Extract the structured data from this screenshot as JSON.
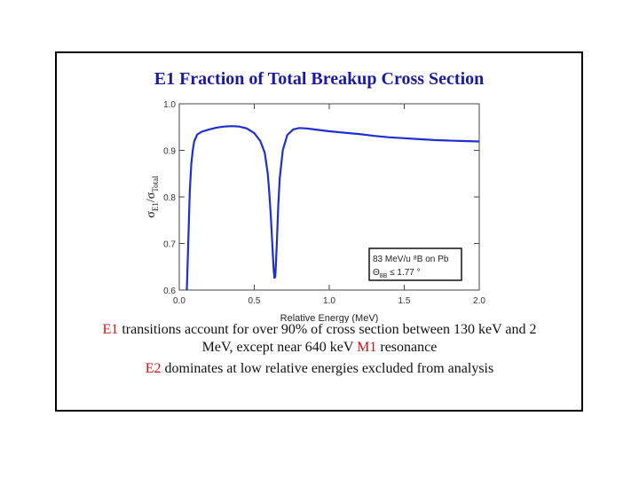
{
  "slide": {
    "title": "E1 Fraction of Total Breakup Cross Section",
    "caption_1": {
      "part1_red": "E1",
      "part2": " transitions account for over 90% of cross section between 130 keV and 2 MeV, except near 640 keV ",
      "part3_red": "M1",
      "part4": " resonance"
    },
    "caption_2": {
      "part1_red": "E2",
      "part2": " dominates at low relative energies excluded from analysis"
    },
    "colors": {
      "title": "#1a1aa0",
      "curve": "#1f2fcf",
      "highlight": "#cc1111"
    }
  },
  "chart_data": {
    "type": "line",
    "title": "E1 Fraction of Total Breakup Cross Section",
    "xlabel": "Relative Energy (MeV)",
    "ylabel_main": "σ",
    "ylabel_sub1": "E1",
    "ylabel_mid": "/σ",
    "ylabel_sub2": "Total",
    "xlim": [
      0,
      2.0
    ],
    "ylim": [
      0.6,
      1.0
    ],
    "x_ticks": [
      "0.0",
      "0.5",
      "1.0",
      "1.5",
      "2.0"
    ],
    "y_ticks": [
      "0.6",
      "0.7",
      "0.8",
      "0.9",
      "1.0"
    ],
    "grid": false,
    "annotation": {
      "line1": "83 MeV/u ⁸B on Pb",
      "line2_symbol": "Θ",
      "line2_sub": "8B",
      "line2_rest": " ≤ 1.77 °"
    },
    "series": [
      {
        "x": [
          0.05,
          0.06,
          0.07,
          0.08,
          0.09,
          0.1,
          0.12,
          0.15,
          0.2,
          0.25,
          0.3,
          0.35,
          0.4,
          0.45,
          0.5,
          0.54,
          0.57,
          0.59,
          0.6,
          0.61,
          0.62,
          0.625,
          0.63,
          0.635,
          0.64,
          0.645,
          0.65,
          0.66,
          0.67,
          0.69,
          0.72,
          0.76,
          0.8,
          0.85,
          0.9,
          1.0,
          1.1,
          1.2,
          1.3,
          1.4,
          1.5,
          1.6,
          1.7,
          1.8,
          1.9,
          2.0
        ],
        "y": [
          0.6,
          0.7,
          0.81,
          0.87,
          0.9,
          0.92,
          0.934,
          0.94,
          0.945,
          0.949,
          0.951,
          0.952,
          0.951,
          0.947,
          0.937,
          0.92,
          0.895,
          0.85,
          0.81,
          0.76,
          0.7,
          0.67,
          0.64,
          0.625,
          0.63,
          0.66,
          0.7,
          0.78,
          0.84,
          0.9,
          0.933,
          0.945,
          0.948,
          0.947,
          0.945,
          0.941,
          0.938,
          0.935,
          0.931,
          0.928,
          0.926,
          0.924,
          0.922,
          0.921,
          0.92,
          0.919
        ]
      }
    ]
  }
}
